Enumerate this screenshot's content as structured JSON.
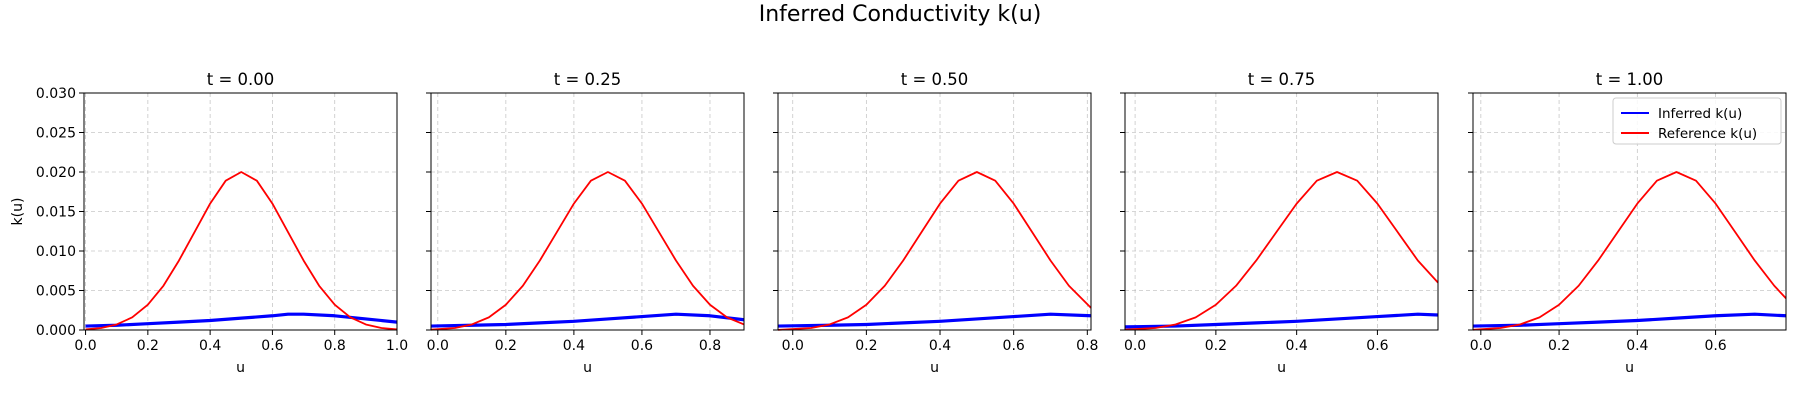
{
  "figure": {
    "suptitle": "Inferred Conductivity k(u)"
  },
  "colors": {
    "inferred": "#0000ff",
    "reference": "#ff0000",
    "grid": "#b0b0b0",
    "axes": "#000000"
  },
  "chart_data": [
    {
      "type": "line",
      "title": "t = 0.00",
      "xlabel": "u",
      "ylabel": "k(u)",
      "xlim": [
        -0.005,
        1.0
      ],
      "ylim": [
        0,
        0.03
      ],
      "xticks": [
        "0.0",
        "0.2",
        "0.4",
        "0.6",
        "0.8",
        "1.0"
      ],
      "yticks": [
        "0.000",
        "0.005",
        "0.010",
        "0.015",
        "0.020",
        "0.025",
        "0.030"
      ],
      "grid": true,
      "legend": null,
      "series": [
        {
          "name": "Inferred k(u)",
          "color": "#0000ff",
          "x": [
            0,
            0.1,
            0.2,
            0.3,
            0.4,
            0.5,
            0.6,
            0.65,
            0.7,
            0.8,
            0.9,
            1.0
          ],
          "y": [
            0.0005,
            0.0006,
            0.0008,
            0.001,
            0.0012,
            0.0015,
            0.0018,
            0.002,
            0.002,
            0.0018,
            0.0014,
            0.001
          ]
        },
        {
          "name": "Reference k(u)",
          "color": "#ff0000",
          "x": [
            0,
            0.05,
            0.1,
            0.15,
            0.2,
            0.25,
            0.3,
            0.35,
            0.4,
            0.45,
            0.5,
            0.55,
            0.6,
            0.65,
            0.7,
            0.75,
            0.8,
            0.85,
            0.9,
            0.95,
            1.0
          ],
          "y": [
            8e-05,
            0.00025,
            0.0007,
            0.0016,
            0.0032,
            0.0056,
            0.0088,
            0.0124,
            0.016,
            0.0189,
            0.02,
            0.0189,
            0.016,
            0.0124,
            0.0088,
            0.0056,
            0.0032,
            0.0016,
            0.0007,
            0.00025,
            8e-05
          ]
        }
      ]
    },
    {
      "type": "line",
      "title": "t = 0.25",
      "xlabel": "u",
      "ylabel": "",
      "xlim": [
        -0.02,
        0.9
      ],
      "ylim": [
        0,
        0.03
      ],
      "xticks": [
        "0.0",
        "0.2",
        "0.4",
        "0.6",
        "0.8"
      ],
      "yticks": [],
      "grid": true,
      "legend": null,
      "series": [
        {
          "name": "Inferred k(u)",
          "color": "#0000ff",
          "x": [
            -0.02,
            0.1,
            0.2,
            0.3,
            0.4,
            0.5,
            0.6,
            0.7,
            0.8,
            0.9
          ],
          "y": [
            0.0005,
            0.0006,
            0.0007,
            0.0009,
            0.0011,
            0.0014,
            0.0017,
            0.002,
            0.0018,
            0.0013
          ]
        },
        {
          "name": "Reference k(u)",
          "color": "#ff0000",
          "x": [
            -0.02,
            0.05,
            0.1,
            0.15,
            0.2,
            0.25,
            0.3,
            0.35,
            0.4,
            0.45,
            0.5,
            0.55,
            0.6,
            0.65,
            0.7,
            0.75,
            0.8,
            0.85,
            0.9
          ],
          "y": [
            4e-05,
            0.00025,
            0.0007,
            0.0016,
            0.0032,
            0.0056,
            0.0088,
            0.0124,
            0.016,
            0.0189,
            0.02,
            0.0189,
            0.016,
            0.0124,
            0.0088,
            0.0056,
            0.0032,
            0.0016,
            0.0007
          ]
        }
      ]
    },
    {
      "type": "line",
      "title": "t = 0.50",
      "xlabel": "u",
      "ylabel": "",
      "xlim": [
        -0.04,
        0.81
      ],
      "ylim": [
        0,
        0.03
      ],
      "xticks": [
        "0.0",
        "0.2",
        "0.4",
        "0.6",
        "0.8"
      ],
      "yticks": [],
      "grid": true,
      "legend": null,
      "series": [
        {
          "name": "Inferred k(u)",
          "color": "#0000ff",
          "x": [
            -0.04,
            0.1,
            0.2,
            0.3,
            0.4,
            0.5,
            0.6,
            0.7,
            0.81
          ],
          "y": [
            0.0005,
            0.0006,
            0.0007,
            0.0009,
            0.0011,
            0.0014,
            0.0017,
            0.002,
            0.0018
          ]
        },
        {
          "name": "Reference k(u)",
          "color": "#ff0000",
          "x": [
            -0.04,
            0.05,
            0.1,
            0.15,
            0.2,
            0.25,
            0.3,
            0.35,
            0.4,
            0.45,
            0.5,
            0.55,
            0.6,
            0.65,
            0.7,
            0.75,
            0.81
          ],
          "y": [
            2e-05,
            0.00025,
            0.0007,
            0.0016,
            0.0032,
            0.0056,
            0.0088,
            0.0124,
            0.016,
            0.0189,
            0.02,
            0.0189,
            0.016,
            0.0124,
            0.0088,
            0.0056,
            0.0028
          ]
        }
      ]
    },
    {
      "type": "line",
      "title": "t = 0.75",
      "xlabel": "u",
      "ylabel": "",
      "xlim": [
        -0.025,
        0.75
      ],
      "ylim": [
        0,
        0.03
      ],
      "xticks": [
        "0.0",
        "0.2",
        "0.4",
        "0.6"
      ],
      "yticks": [],
      "grid": true,
      "legend": null,
      "series": [
        {
          "name": "Inferred k(u)",
          "color": "#0000ff",
          "x": [
            -0.025,
            0.1,
            0.2,
            0.3,
            0.4,
            0.5,
            0.6,
            0.7,
            0.75
          ],
          "y": [
            0.0004,
            0.0005,
            0.0007,
            0.0009,
            0.0011,
            0.0014,
            0.0017,
            0.002,
            0.0019
          ]
        },
        {
          "name": "Reference k(u)",
          "color": "#ff0000",
          "x": [
            -0.025,
            0.05,
            0.1,
            0.15,
            0.2,
            0.25,
            0.3,
            0.35,
            0.4,
            0.45,
            0.5,
            0.55,
            0.6,
            0.65,
            0.7,
            0.75
          ],
          "y": [
            5e-05,
            0.00025,
            0.0007,
            0.0016,
            0.0032,
            0.0056,
            0.0088,
            0.0124,
            0.016,
            0.0189,
            0.02,
            0.0189,
            0.016,
            0.0124,
            0.0088,
            0.006
          ]
        }
      ]
    },
    {
      "type": "line",
      "title": "t = 1.00",
      "xlabel": "u",
      "ylabel": "",
      "xlim": [
        -0.02,
        0.78
      ],
      "ylim": [
        0,
        0.03
      ],
      "xticks": [
        "0.0",
        "0.2",
        "0.4",
        "0.6"
      ],
      "yticks": [],
      "grid": true,
      "legend": "top-right",
      "series": [
        {
          "name": "Inferred k(u)",
          "color": "#0000ff",
          "x": [
            -0.02,
            0.1,
            0.2,
            0.3,
            0.4,
            0.5,
            0.6,
            0.7,
            0.78
          ],
          "y": [
            0.0005,
            0.0006,
            0.0008,
            0.001,
            0.0012,
            0.0015,
            0.0018,
            0.002,
            0.0018
          ]
        },
        {
          "name": "Reference k(u)",
          "color": "#ff0000",
          "x": [
            -0.02,
            0.05,
            0.1,
            0.15,
            0.2,
            0.25,
            0.3,
            0.35,
            0.4,
            0.45,
            0.5,
            0.55,
            0.6,
            0.65,
            0.7,
            0.75,
            0.78
          ],
          "y": [
            3e-05,
            0.00025,
            0.0007,
            0.0016,
            0.0032,
            0.0056,
            0.0088,
            0.0124,
            0.016,
            0.0189,
            0.02,
            0.0189,
            0.016,
            0.0124,
            0.0088,
            0.0056,
            0.004
          ]
        }
      ]
    }
  ]
}
